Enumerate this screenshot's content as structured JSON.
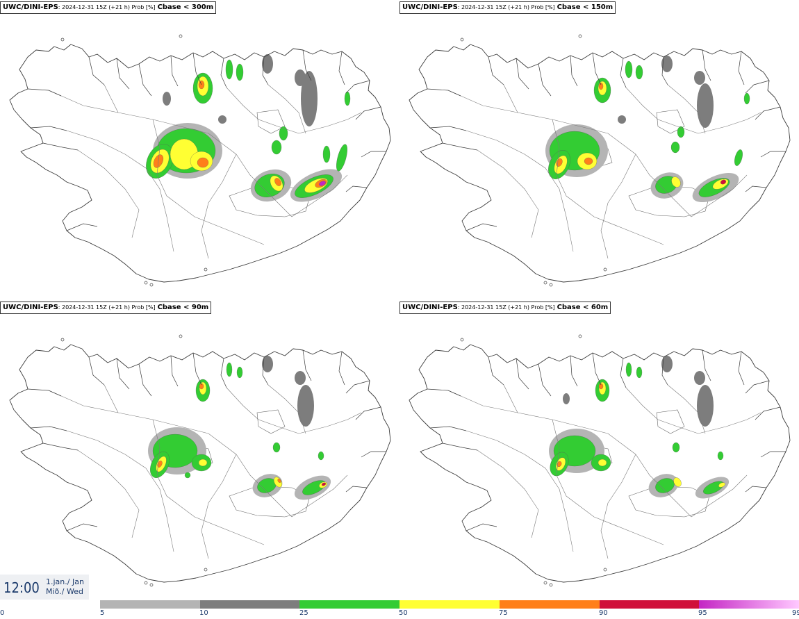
{
  "panels": [
    {
      "source": "UWC/DINI-EPS",
      "desc": ": 2024-12-31 15Z (+21 h) Prob [%]",
      "cbase": "Cbase < 300m"
    },
    {
      "source": "UWC/DINI-EPS",
      "desc": ": 2024-12-31 15Z (+21 h) Prob [%]",
      "cbase": "Cbase < 150m"
    },
    {
      "source": "UWC/DINI-EPS",
      "desc": ": 2024-12-31 15Z (+21 h) Prob [%]",
      "cbase": "Cbase < 90m"
    },
    {
      "source": "UWC/DINI-EPS",
      "desc": ": 2024-12-31 15Z (+21 h) Prob [%]",
      "cbase": "Cbase < 60m"
    }
  ],
  "valid_time": {
    "time": "12:00",
    "date_line1": "1.jan./ Jan",
    "date_line2": "Mið./ Wed"
  },
  "colorbar": {
    "ticks": [
      "0",
      "5",
      "10",
      "25",
      "50",
      "75",
      "90",
      "95",
      "99"
    ],
    "colors": [
      "#b4b4b4",
      "#7d7d7d",
      "#33cc33",
      "#ffff33",
      "#ff7f1a",
      "#d0103a",
      "#c426c4",
      "#ffc8ff"
    ]
  }
}
